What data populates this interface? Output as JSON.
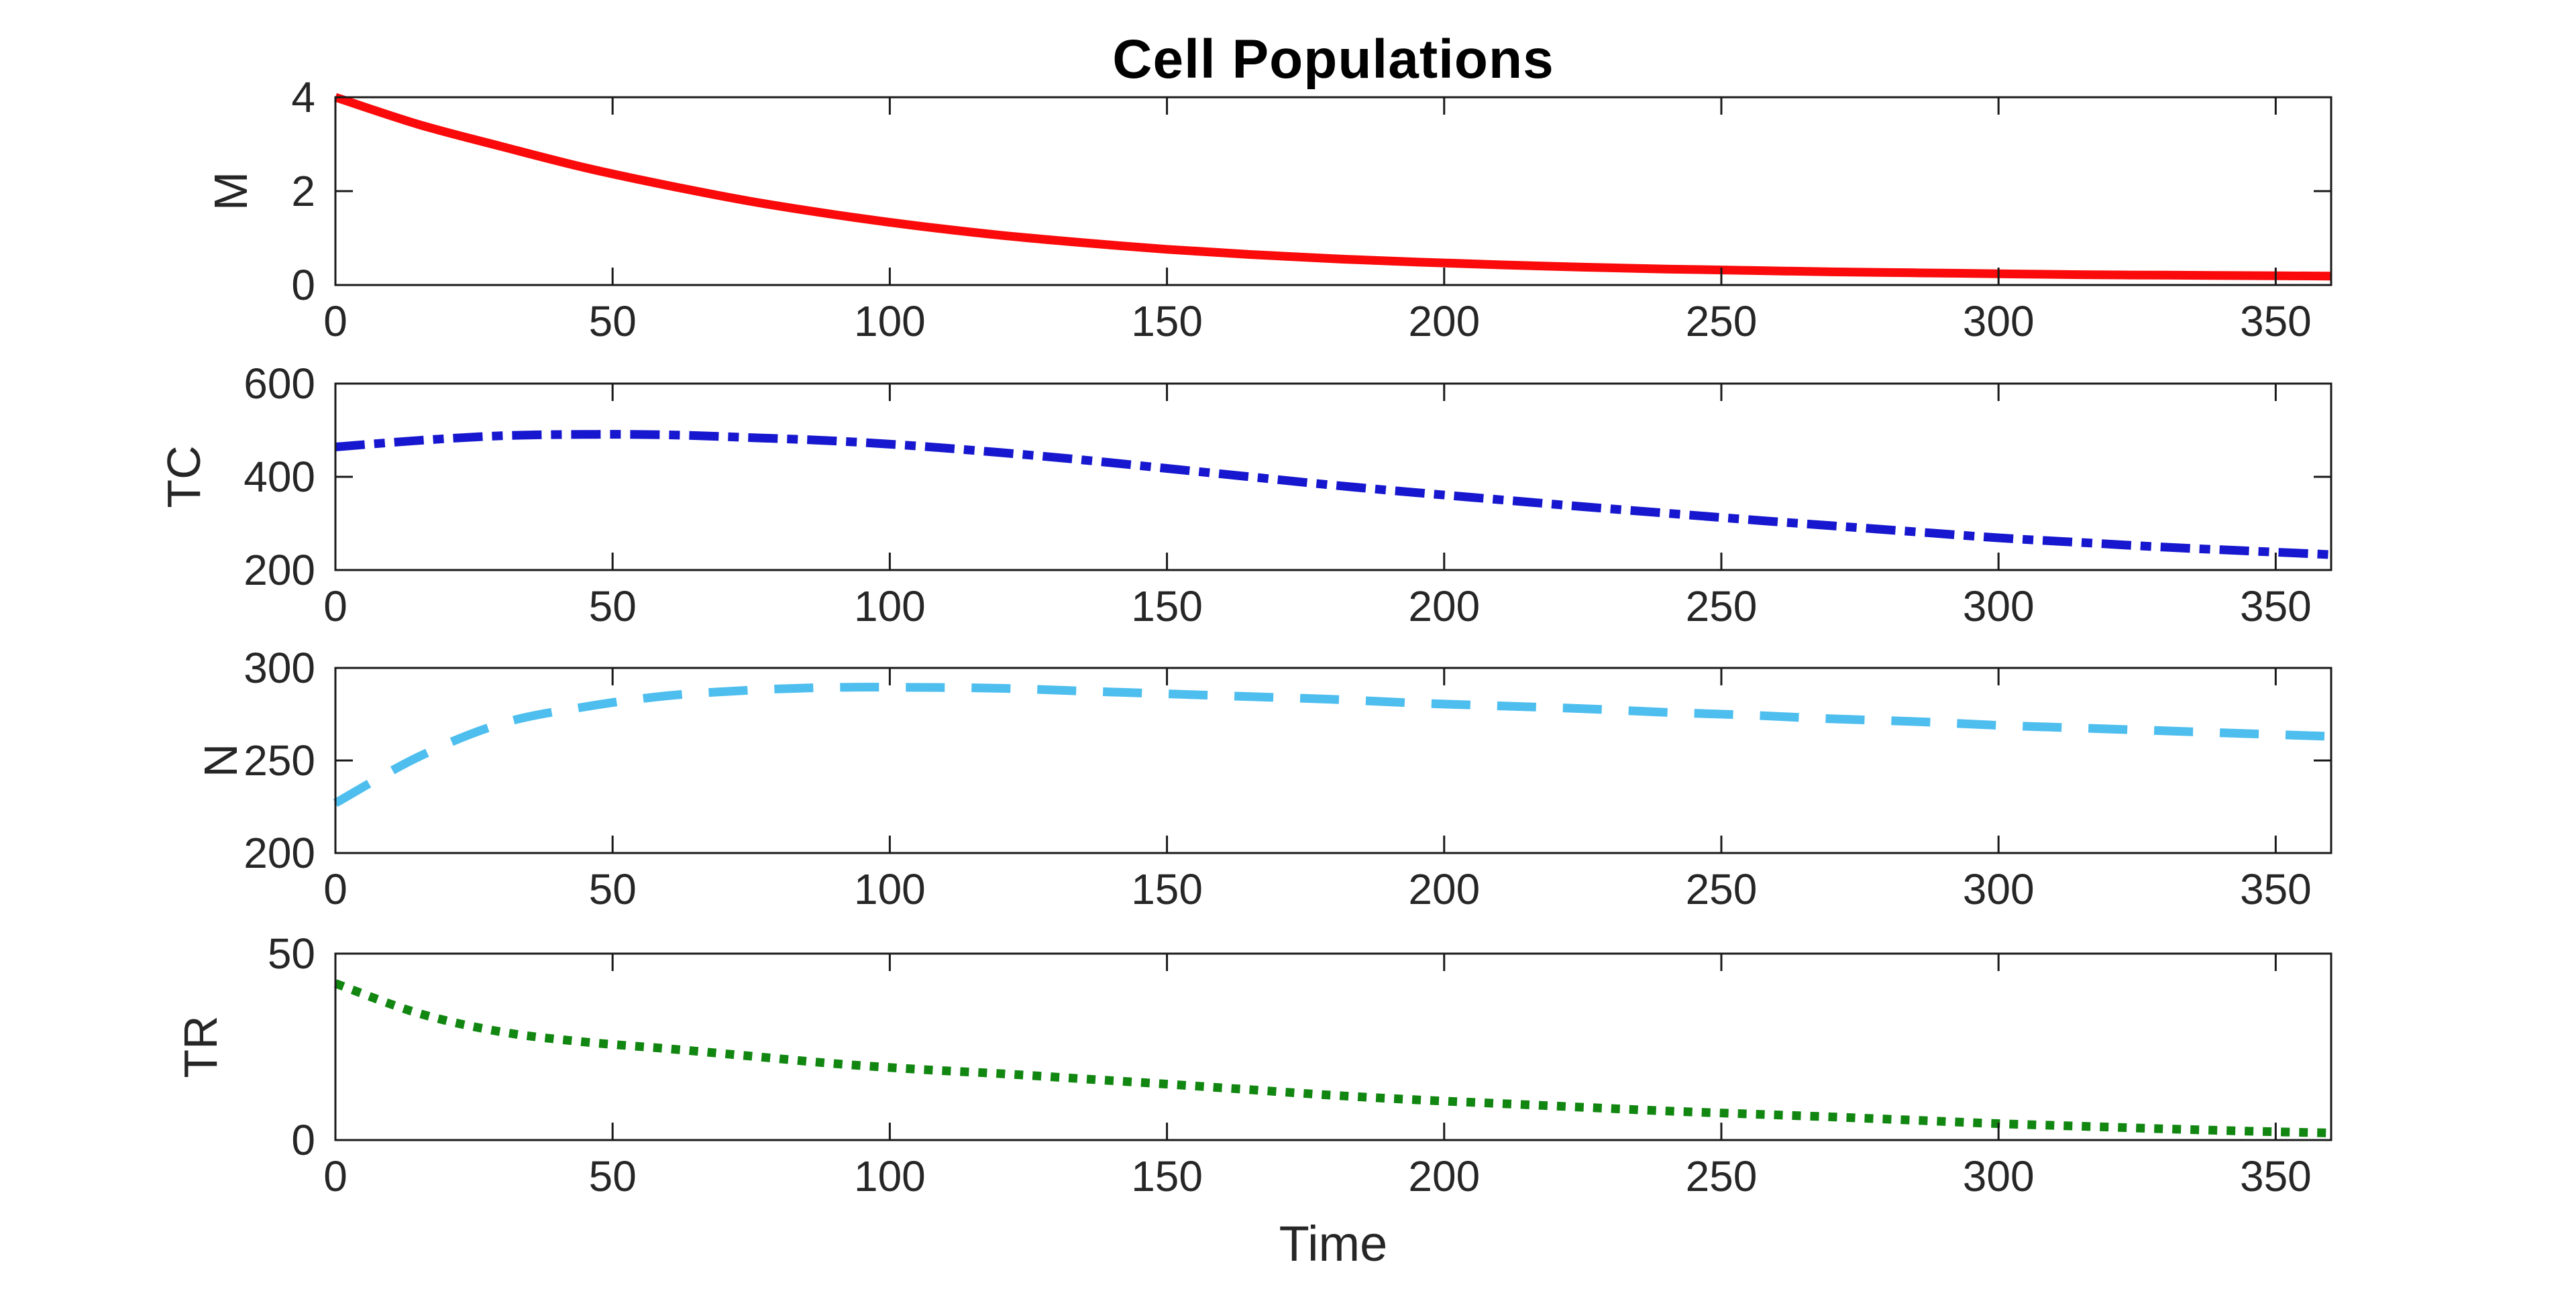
{
  "figure": {
    "title": "Cell Populations",
    "xlabel": "Time",
    "background_color": "#FFFFFF",
    "axis_color": "#1A1A1A",
    "tick_label_color": "#262626",
    "xlim": [
      0,
      360
    ],
    "xticks": [
      0,
      50,
      100,
      150,
      200,
      250,
      300,
      350
    ]
  },
  "chart_data": [
    {
      "type": "line",
      "ylabel": "M",
      "color": "#FA0A0A",
      "line_style": "solid",
      "ylim": [
        0,
        4
      ],
      "yticks": [
        0,
        2,
        4
      ],
      "x": [
        0,
        15,
        30,
        45,
        60,
        75,
        90,
        105,
        120,
        135,
        150,
        165,
        180,
        195,
        210,
        225,
        240,
        255,
        270,
        285,
        300,
        315,
        330,
        345,
        360
      ],
      "y": [
        4.0,
        3.42,
        2.95,
        2.5,
        2.12,
        1.78,
        1.5,
        1.26,
        1.06,
        0.9,
        0.76,
        0.65,
        0.56,
        0.49,
        0.43,
        0.38,
        0.34,
        0.31,
        0.28,
        0.26,
        0.24,
        0.22,
        0.21,
        0.2,
        0.19
      ]
    },
    {
      "type": "line",
      "ylabel": "TC",
      "color": "#1717CF",
      "line_style": "dash-dot",
      "ylim": [
        200,
        600
      ],
      "yticks": [
        200,
        400,
        600
      ],
      "x": [
        0,
        15,
        30,
        45,
        60,
        75,
        90,
        105,
        120,
        135,
        150,
        165,
        180,
        195,
        210,
        225,
        240,
        255,
        270,
        285,
        300,
        315,
        330,
        345,
        360
      ],
      "y": [
        464,
        478,
        488,
        491,
        490,
        484,
        477,
        466,
        452,
        436,
        418,
        400,
        382,
        366,
        351,
        336,
        322,
        308,
        295,
        282,
        269,
        259,
        249,
        241,
        233
      ]
    },
    {
      "type": "line",
      "ylabel": "N",
      "color": "#4DBEEE",
      "line_style": "dashed",
      "ylim": [
        200,
        300
      ],
      "yticks": [
        200,
        250,
        300
      ],
      "x": [
        0,
        15,
        30,
        45,
        60,
        75,
        90,
        105,
        120,
        135,
        150,
        165,
        180,
        195,
        210,
        225,
        240,
        255,
        270,
        285,
        300,
        315,
        330,
        345,
        360
      ],
      "y": [
        227,
        252,
        270,
        279,
        285,
        288,
        289.5,
        289.5,
        289,
        287.5,
        286,
        284.5,
        283,
        281,
        279.5,
        278,
        276,
        274.5,
        272.5,
        271,
        269,
        267.5,
        266,
        264.5,
        263
      ]
    },
    {
      "type": "line",
      "ylabel": "TR",
      "color": "#118611",
      "line_style": "dotted",
      "ylim": [
        0,
        50
      ],
      "yticks": [
        0,
        50
      ],
      "x": [
        0,
        15,
        30,
        45,
        60,
        75,
        90,
        105,
        120,
        135,
        150,
        165,
        180,
        195,
        210,
        225,
        240,
        255,
        270,
        285,
        300,
        315,
        330,
        345,
        360
      ],
      "y": [
        42,
        34,
        29,
        26.3,
        24.5,
        22.5,
        20.5,
        19.0,
        17.8,
        16.4,
        15.0,
        13.5,
        12.0,
        10.8,
        9.8,
        8.8,
        7.8,
        7.0,
        6.2,
        5.3,
        4.4,
        3.7,
        3.0,
        2.4,
        1.9
      ]
    }
  ]
}
